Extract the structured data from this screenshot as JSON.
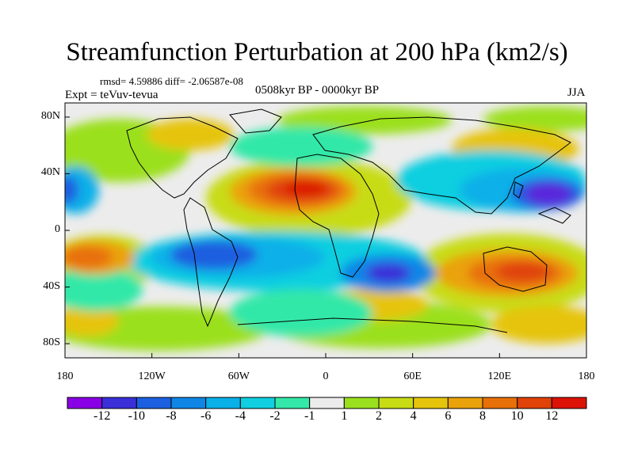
{
  "title": "Streamfunction Perturbation at 200 hPa (km2/s)",
  "stats": "rmsd= 4.59886 diff= -2.06587e-08",
  "experiment": "Expt = teVuv-tevua",
  "period": "0508kyr BP - 0000kyr BP",
  "season": "JJA",
  "y_ticks": [
    "80N",
    "40N",
    "0",
    "40S",
    "80S"
  ],
  "x_ticks": [
    "180",
    "120W",
    "60W",
    "0",
    "60E",
    "120E",
    "180"
  ],
  "colorbar": {
    "labels": [
      "-12",
      "-10",
      "-8",
      "-6",
      "-4",
      "-2",
      "-1",
      "1",
      "2",
      "4",
      "6",
      "8",
      "10",
      "12"
    ],
    "colors": [
      "#8a00e6",
      "#3a2fd8",
      "#1c5fe0",
      "#0f86e6",
      "#0ab0e8",
      "#10cfe0",
      "#33e8a8",
      "#ececec",
      "#9be01e",
      "#c8dc14",
      "#e6c40c",
      "#eaa20a",
      "#e87008",
      "#e04208",
      "#dc1206"
    ]
  },
  "map": {
    "projection": "cylindrical equidistant",
    "lon_range": [
      -180,
      180
    ],
    "lat_range": [
      -90,
      90
    ],
    "features": [
      {
        "name": "north-atlantic-high",
        "lon": -25,
        "lat": 33,
        "value": 12
      },
      {
        "name": "north-pacific-low",
        "lon": 155,
        "lat": 30,
        "value": -12
      },
      {
        "name": "east-pacific-low",
        "lon": -178,
        "lat": 30,
        "value": -8
      },
      {
        "name": "australia-high",
        "lon": 125,
        "lat": -25,
        "value": 10
      },
      {
        "name": "south-pacific-high",
        "lon": -165,
        "lat": -18,
        "value": 8
      },
      {
        "name": "south-atlantic-low",
        "lon": -60,
        "lat": -18,
        "value": -8
      },
      {
        "name": "indian-ocean-low",
        "lon": 40,
        "lat": -25,
        "value": -10
      },
      {
        "name": "asia-high",
        "lon": 100,
        "lat": 42,
        "value": 6
      }
    ]
  }
}
